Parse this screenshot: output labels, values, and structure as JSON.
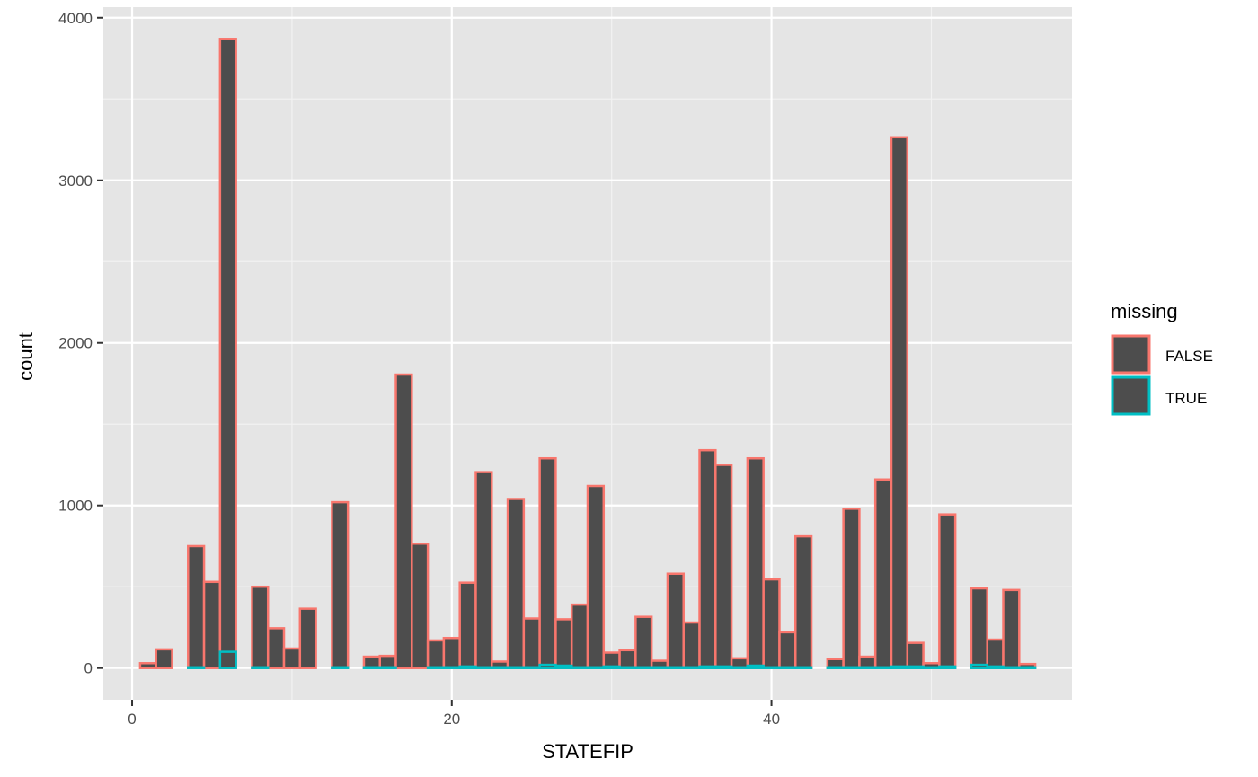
{
  "chart_data": {
    "type": "bar",
    "title": "",
    "xlabel": "STATEFIP",
    "ylabel": "count",
    "xlim": [
      -1.8,
      58.8
    ],
    "ylim": [
      -195,
      4065
    ],
    "xticks": [
      0,
      20,
      40
    ],
    "xtick_labels": [
      "0",
      "20",
      "40"
    ],
    "yticks": [
      0,
      1000,
      2000,
      3000,
      4000
    ],
    "ytick_labels": [
      "0",
      "1000",
      "2000",
      "3000",
      "4000"
    ],
    "grid": true,
    "bar_fill": "#4d4d4d",
    "panel_background": "#e5e5e5",
    "grid_color": "#ffffff",
    "legend": {
      "title": "missing",
      "position": "right",
      "entries": [
        {
          "label": "FALSE",
          "color": "#f8766d"
        },
        {
          "label": "TRUE",
          "color": "#00bfc4"
        }
      ]
    },
    "series": [
      {
        "name": "FALSE",
        "color": "#f8766d",
        "x": [
          1,
          2,
          4,
          5,
          6,
          8,
          9,
          10,
          11,
          13,
          15,
          16,
          17,
          18,
          19,
          20,
          21,
          22,
          23,
          24,
          25,
          26,
          27,
          28,
          29,
          30,
          31,
          32,
          33,
          34,
          35,
          36,
          37,
          38,
          39,
          40,
          41,
          42,
          44,
          45,
          46,
          47,
          48,
          49,
          50,
          51,
          53,
          54,
          55,
          56
        ],
        "values": [
          30,
          115,
          750,
          530,
          3870,
          500,
          245,
          120,
          365,
          1020,
          70,
          75,
          1805,
          765,
          170,
          185,
          525,
          1205,
          40,
          1040,
          305,
          1290,
          300,
          390,
          1120,
          95,
          110,
          315,
          45,
          580,
          280,
          1340,
          1250,
          60,
          1290,
          545,
          220,
          810,
          55,
          980,
          70,
          1160,
          3265,
          155,
          30,
          945,
          490,
          175,
          480,
          25
        ]
      },
      {
        "name": "TRUE",
        "color": "#00bfc4",
        "x": [
          4,
          6,
          8,
          13,
          15,
          16,
          19,
          20,
          21,
          22,
          23,
          24,
          25,
          26,
          27,
          28,
          29,
          30,
          31,
          32,
          33,
          34,
          35,
          36,
          37,
          38,
          39,
          40,
          41,
          42,
          44,
          45,
          46,
          47,
          48,
          49,
          50,
          51,
          53,
          54,
          55,
          56
        ],
        "values": [
          5,
          100,
          5,
          5,
          5,
          5,
          5,
          5,
          10,
          5,
          5,
          5,
          5,
          20,
          15,
          5,
          5,
          10,
          5,
          5,
          5,
          5,
          5,
          10,
          10,
          5,
          15,
          5,
          5,
          5,
          5,
          5,
          5,
          5,
          10,
          10,
          5,
          10,
          20,
          10,
          5,
          5
        ]
      }
    ]
  }
}
